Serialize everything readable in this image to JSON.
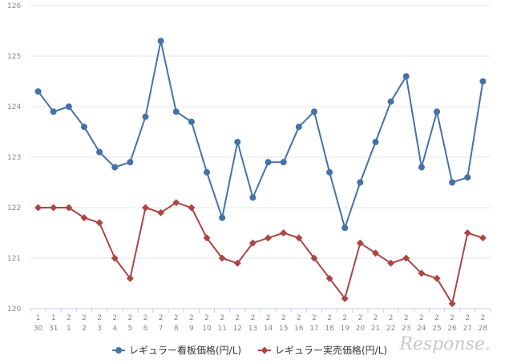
{
  "chart_data": {
    "type": "line",
    "title": "",
    "xlabel": "",
    "ylabel": "",
    "ylim": [
      120,
      126
    ],
    "yticks": [
      120,
      121,
      122,
      123,
      124,
      125,
      126
    ],
    "grid": "horizontal",
    "legend_position": "bottom",
    "categories": [
      {
        "month": "1",
        "day": "30"
      },
      {
        "month": "1",
        "day": "31"
      },
      {
        "month": "2",
        "day": "1"
      },
      {
        "month": "2",
        "day": "2"
      },
      {
        "month": "2",
        "day": "3"
      },
      {
        "month": "2",
        "day": "4"
      },
      {
        "month": "2",
        "day": "5"
      },
      {
        "month": "2",
        "day": "6"
      },
      {
        "month": "2",
        "day": "7"
      },
      {
        "month": "2",
        "day": "8"
      },
      {
        "month": "2",
        "day": "9"
      },
      {
        "month": "2",
        "day": "10"
      },
      {
        "month": "2",
        "day": "11"
      },
      {
        "month": "2",
        "day": "12"
      },
      {
        "month": "2",
        "day": "13"
      },
      {
        "month": "2",
        "day": "14"
      },
      {
        "month": "2",
        "day": "15"
      },
      {
        "month": "2",
        "day": "16"
      },
      {
        "month": "2",
        "day": "17"
      },
      {
        "month": "2",
        "day": "18"
      },
      {
        "month": "2",
        "day": "19"
      },
      {
        "month": "2",
        "day": "20"
      },
      {
        "month": "2",
        "day": "21"
      },
      {
        "month": "2",
        "day": "22"
      },
      {
        "month": "2",
        "day": "23"
      },
      {
        "month": "2",
        "day": "24"
      },
      {
        "month": "2",
        "day": "25"
      },
      {
        "month": "2",
        "day": "26"
      },
      {
        "month": "2",
        "day": "27"
      },
      {
        "month": "2",
        "day": "28"
      }
    ],
    "series": [
      {
        "name": "レギュラー看板価格(円/L)",
        "color": "#4572a7",
        "marker": "circle",
        "values": [
          124.3,
          123.9,
          124.0,
          123.6,
          123.1,
          122.8,
          122.9,
          123.8,
          125.3,
          123.9,
          123.7,
          122.7,
          121.8,
          123.3,
          122.2,
          122.9,
          122.9,
          123.6,
          123.9,
          122.7,
          121.6,
          122.5,
          123.3,
          124.1,
          124.6,
          122.8,
          123.9,
          122.5,
          122.6,
          124.5
        ]
      },
      {
        "name": "レギュラー実売価格(円/L)",
        "color": "#aa4643",
        "marker": "diamond",
        "values": [
          122.0,
          122.0,
          122.0,
          121.8,
          121.7,
          121.0,
          120.6,
          122.0,
          121.9,
          122.1,
          122.0,
          121.4,
          121.0,
          120.9,
          121.3,
          121.4,
          121.5,
          121.4,
          121.0,
          120.6,
          120.2,
          121.3,
          121.1,
          120.9,
          121.0,
          120.7,
          120.6,
          120.1,
          121.5,
          121.4
        ]
      }
    ]
  },
  "watermark": {
    "text": "Response.",
    "color": "#c8c8c8"
  }
}
